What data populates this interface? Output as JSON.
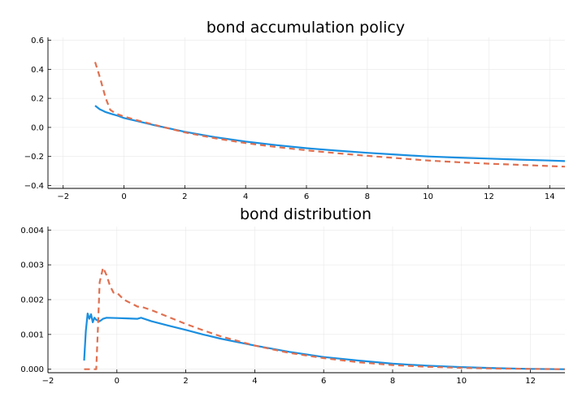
{
  "chart_data": [
    {
      "type": "line",
      "title": "bond accumulation policy",
      "xlabel": "",
      "ylabel": "",
      "xlim": [
        -2.5,
        14.5
      ],
      "ylim": [
        -0.42,
        0.62
      ],
      "xticks": [
        -2,
        0,
        2,
        4,
        6,
        8,
        10,
        12,
        14
      ],
      "xtick_labels": [
        "−2",
        "0",
        "2",
        "4",
        "6",
        "8",
        "10",
        "12",
        "14"
      ],
      "yticks": [
        -0.4,
        -0.2,
        0.0,
        0.2,
        0.4,
        0.6
      ],
      "ytick_labels": [
        "−0.4",
        "−0.2",
        "0.0",
        "0.2",
        "0.4",
        "0.6"
      ],
      "grid": true,
      "legend": "none",
      "series": [
        {
          "color": "#1a8fe0",
          "dash": "solid",
          "x": [
            -0.95,
            -0.8,
            -0.6,
            -0.4,
            -0.2,
            0,
            0.5,
            1,
            2,
            3,
            4,
            5,
            6,
            7,
            8,
            9,
            10,
            11,
            12,
            13,
            14,
            14.5
          ],
          "y": [
            0.15,
            0.125,
            0.105,
            0.092,
            0.08,
            0.065,
            0.04,
            0.015,
            -0.03,
            -0.068,
            -0.098,
            -0.122,
            -0.143,
            -0.16,
            -0.175,
            -0.188,
            -0.2,
            -0.208,
            -0.215,
            -0.222,
            -0.228,
            -0.232
          ]
        },
        {
          "color": "#e07050",
          "dash": "dashed",
          "x": [
            -0.95,
            -0.8,
            -0.6,
            -0.45,
            -0.3,
            -0.2,
            0,
            0.5,
            1,
            2,
            3,
            4,
            5,
            6,
            7,
            8,
            9,
            10,
            11,
            12,
            13,
            14,
            14.5
          ],
          "y": [
            0.45,
            0.35,
            0.2,
            0.12,
            0.1,
            0.09,
            0.075,
            0.045,
            0.018,
            -0.035,
            -0.075,
            -0.108,
            -0.135,
            -0.158,
            -0.178,
            -0.196,
            -0.212,
            -0.228,
            -0.24,
            -0.25,
            -0.258,
            -0.266,
            -0.27
          ]
        }
      ]
    },
    {
      "type": "line",
      "title": "bond distribution",
      "xlabel": "",
      "ylabel": "",
      "xlim": [
        -2,
        13
      ],
      "ylim": [
        -0.0001,
        0.0041
      ],
      "xticks": [
        -2,
        0,
        2,
        4,
        6,
        8,
        10,
        12
      ],
      "xtick_labels": [
        "−2",
        "0",
        "2",
        "4",
        "6",
        "8",
        "10",
        "12"
      ],
      "yticks": [
        0.0,
        0.001,
        0.002,
        0.003,
        0.004
      ],
      "ytick_labels": [
        "0.000",
        "0.001",
        "0.002",
        "0.003",
        "0.004"
      ],
      "grid": true,
      "legend": "none",
      "series": [
        {
          "color": "#1a8fe0",
          "dash": "solid",
          "x": [
            -0.95,
            -0.9,
            -0.85,
            -0.8,
            -0.75,
            -0.7,
            -0.65,
            -0.6,
            -0.5,
            -0.4,
            -0.3,
            0,
            0.3,
            0.6,
            0.7,
            1,
            1.5,
            2,
            2.5,
            3,
            4,
            5,
            6,
            7,
            8,
            9,
            10,
            11,
            12,
            13
          ],
          "y": [
            0.00025,
            0.0011,
            0.0016,
            0.00145,
            0.00158,
            0.00135,
            0.00148,
            0.00142,
            0.00138,
            0.00145,
            0.00148,
            0.00147,
            0.00146,
            0.00145,
            0.00148,
            0.00138,
            0.00125,
            0.00113,
            0.001,
            0.00088,
            0.00068,
            0.0005,
            0.00035,
            0.00025,
            0.00016,
            0.0001,
            6e-05,
            3e-05,
            1e-05,
            0.0
          ]
        },
        {
          "color": "#e07050",
          "dash": "dashed",
          "x": [
            -0.95,
            -0.6,
            -0.55,
            -0.5,
            -0.4,
            -0.3,
            -0.2,
            -0.1,
            0,
            0.2,
            0.5,
            0.6,
            0.7,
            1,
            1.5,
            2,
            2.5,
            3,
            4,
            5,
            6,
            7,
            8,
            9,
            10,
            11,
            12,
            13
          ],
          "y": [
            0.0,
            0.0,
            0.0012,
            0.0025,
            0.00292,
            0.0027,
            0.0024,
            0.0022,
            0.0022,
            0.002,
            0.00185,
            0.0018,
            0.0018,
            0.0017,
            0.0015,
            0.0013,
            0.00112,
            0.00095,
            0.00068,
            0.00047,
            0.00032,
            0.0002,
            0.00012,
            7e-05,
            4e-05,
            2e-05,
            1e-05,
            0.0
          ]
        }
      ]
    }
  ]
}
